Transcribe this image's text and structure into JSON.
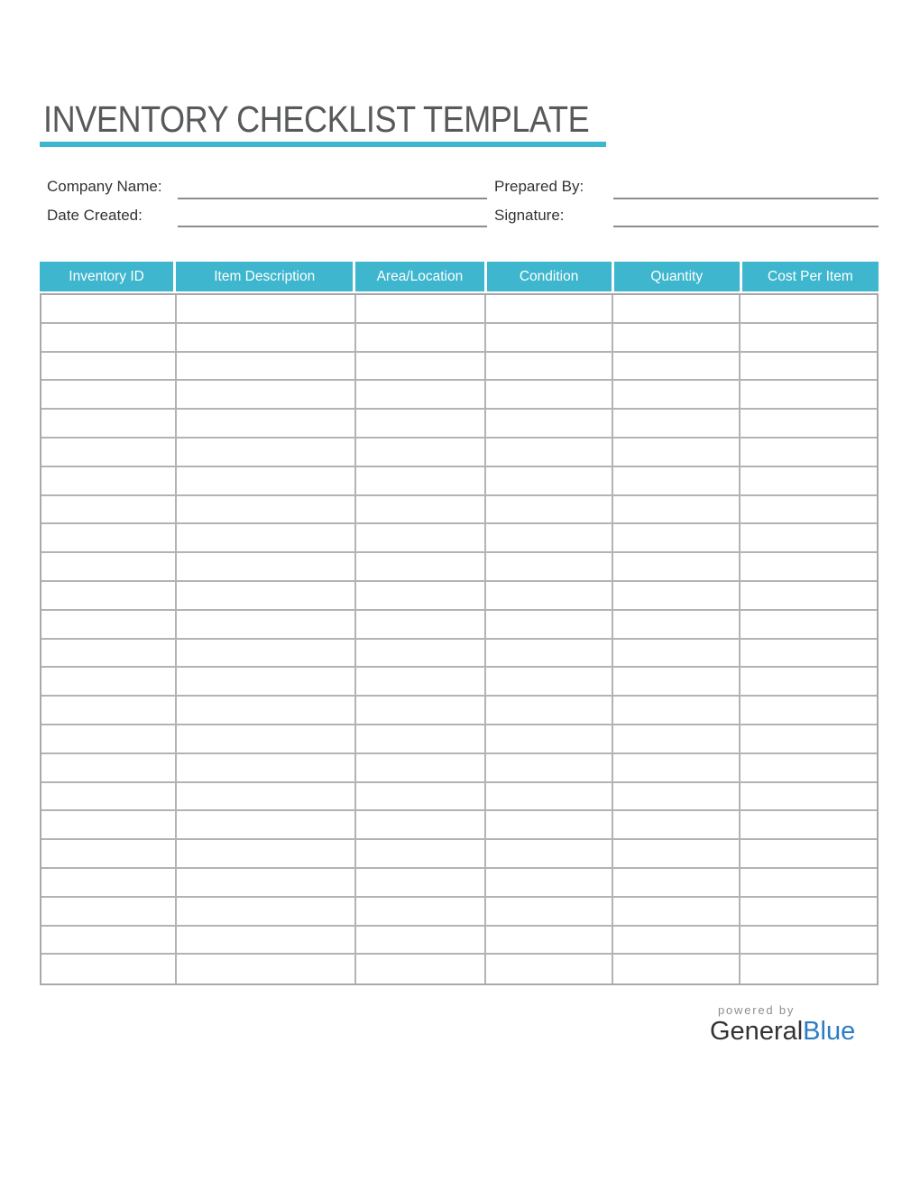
{
  "page": {
    "title": "INVENTORY CHECKLIST TEMPLATE",
    "accent_color": "#3db6ce"
  },
  "form": {
    "fields": [
      {
        "id": "company-name",
        "label": "Company Name:",
        "value": ""
      },
      {
        "id": "date-created",
        "label": "Date Created:",
        "value": ""
      },
      {
        "id": "prepared-by",
        "label": "Prepared By:",
        "value": ""
      },
      {
        "id": "signature",
        "label": "Signature:",
        "value": ""
      }
    ]
  },
  "table": {
    "headers": [
      "Inventory ID",
      "Item Description",
      "Area/Location",
      "Condition",
      "Quantity",
      "Cost Per Item"
    ],
    "row_count": 24,
    "cells_empty": true,
    "header_bg": "#3db6ce",
    "header_text_color": "#ffffff",
    "grid_color": "#b3b3b3"
  },
  "footer": {
    "powered_by": "powered by",
    "brand_first": "General",
    "brand_second": "Blue",
    "brand_blue": "#2a7dc4"
  }
}
